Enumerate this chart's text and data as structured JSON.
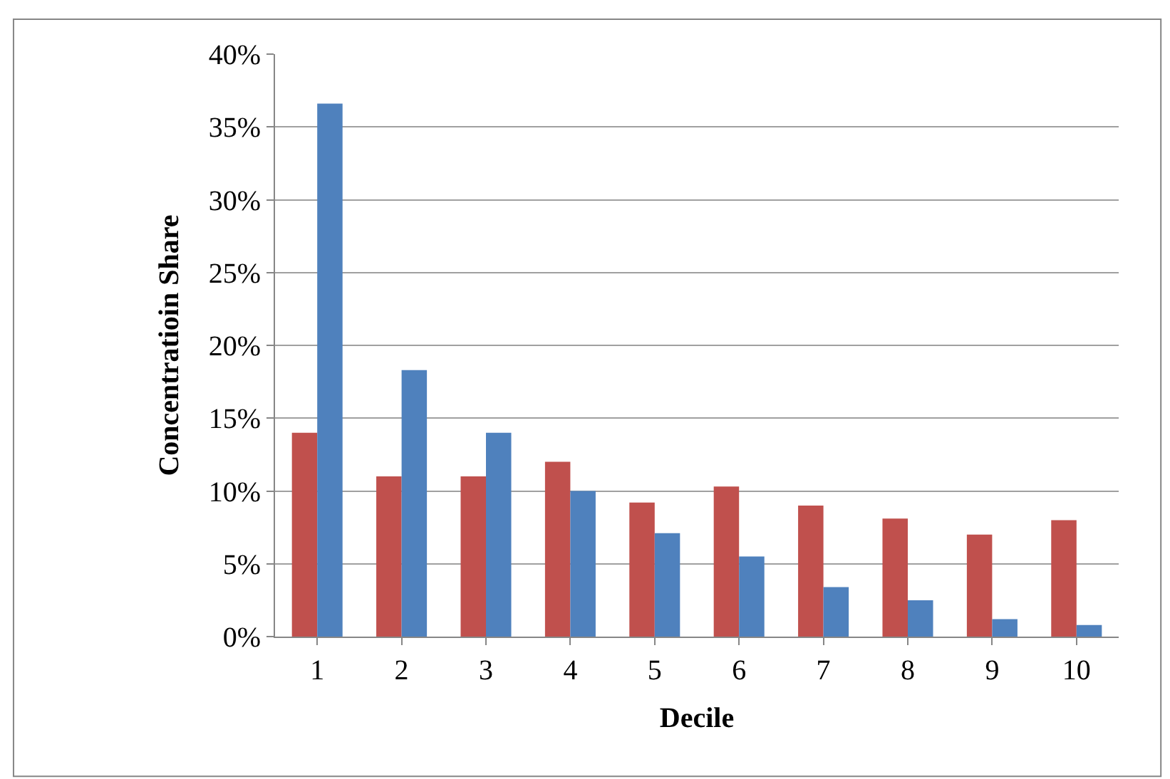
{
  "chart_data": {
    "type": "bar",
    "xlabel": "Decile",
    "ylabel": "Concentratioin Share",
    "categories": [
      "1",
      "2",
      "3",
      "4",
      "5",
      "6",
      "7",
      "8",
      "9",
      "10"
    ],
    "series": [
      {
        "color": "#c0504d",
        "values": [
          14,
          11,
          11,
          12,
          9.2,
          10.3,
          9.0,
          8.1,
          7.0,
          8.0
        ]
      },
      {
        "color": "#4f81bd",
        "values": [
          36.6,
          18.3,
          14,
          10.0,
          7.1,
          5.5,
          3.4,
          2.5,
          1.2,
          0.8
        ]
      }
    ],
    "ylim": [
      0,
      40
    ],
    "yticks": [
      {
        "value": 0,
        "label": "0%"
      },
      {
        "value": 5,
        "label": "5%"
      },
      {
        "value": 10,
        "label": "10%"
      },
      {
        "value": 15,
        "label": "15%"
      },
      {
        "value": 20,
        "label": "20%"
      },
      {
        "value": 25,
        "label": "25%"
      },
      {
        "value": 30,
        "label": "30%"
      },
      {
        "value": 35,
        "label": "35%"
      },
      {
        "value": 40,
        "label": "40%"
      }
    ],
    "grid": "y"
  }
}
